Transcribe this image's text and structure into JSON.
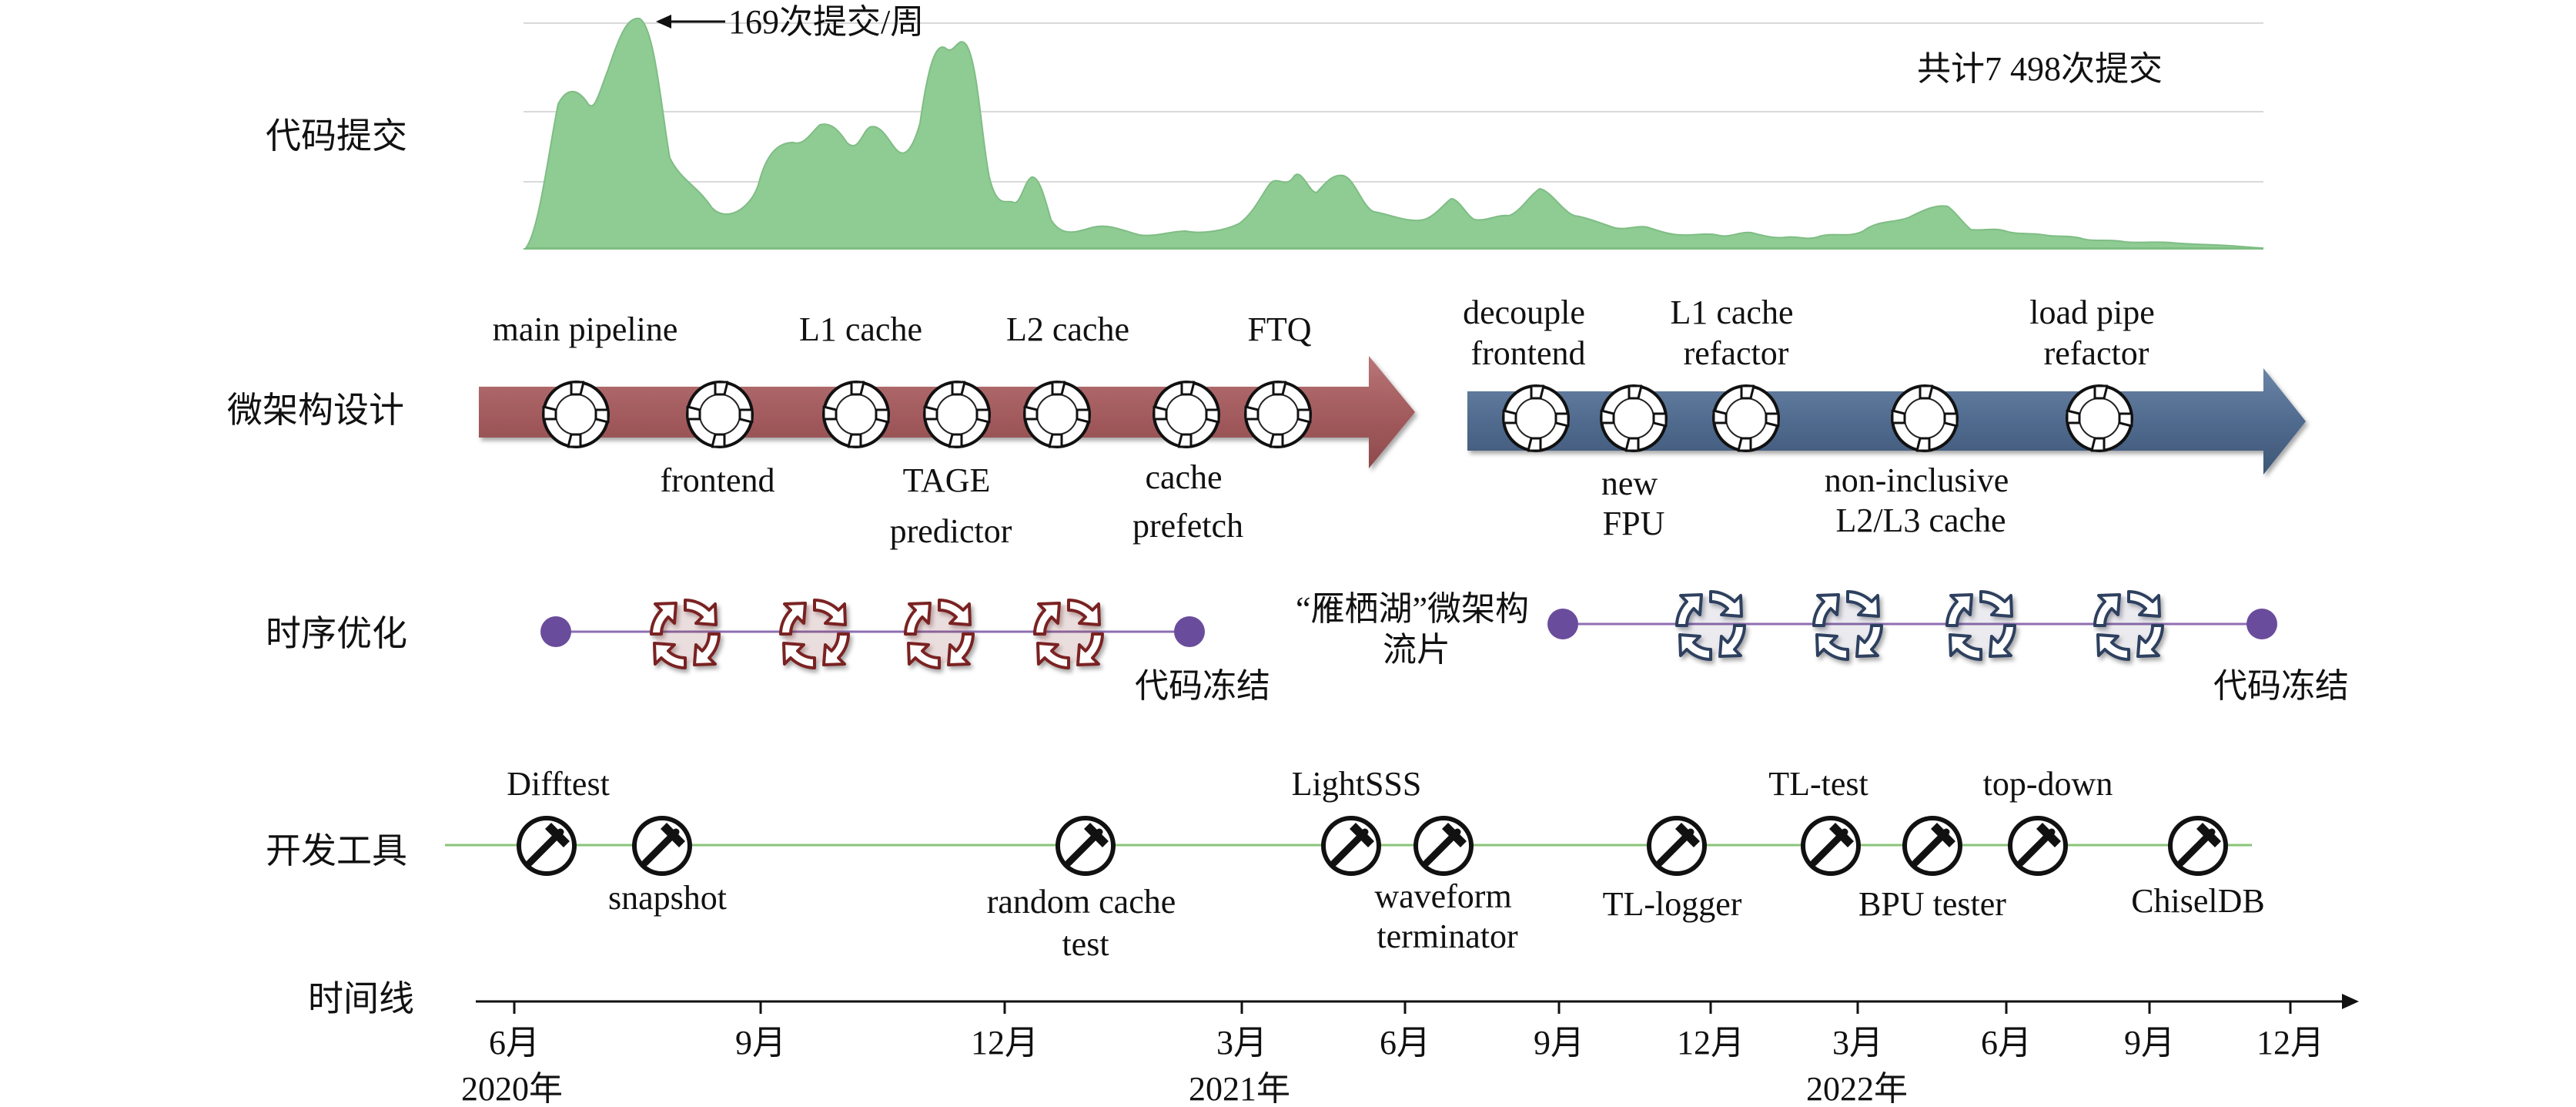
{
  "colors": {
    "commits_fill": "#8fcc94",
    "arrow_phase1": "#a45c5e",
    "arrow_phase2": "#4f6a8c",
    "timing_line": "#8e6fb0",
    "timing_dot": "#6a4c9c",
    "tools_line": "#8bc37a",
    "red_gear": "#8a2a2a",
    "blue_gear": "#34496b"
  },
  "rows": {
    "commits": "代码提交",
    "microarch": "微架构设计",
    "timing": "时序优化",
    "tools": "开发工具",
    "timeline": "时间线"
  },
  "commits": {
    "peak_label": "169次提交/周",
    "total_label": "共计7 498次提交"
  },
  "microarch": {
    "phase1_top": [
      {
        "lines": [
          "main pipeline"
        ]
      },
      {
        "lines": [
          "L1 cache"
        ]
      },
      {
        "lines": [
          "L2 cache"
        ]
      },
      {
        "lines": [
          "FTQ"
        ]
      }
    ],
    "phase1_bottom": [
      {
        "lines": [
          "frontend"
        ]
      },
      {
        "lines": [
          "TAGE",
          "predictor"
        ]
      },
      {
        "lines": [
          "cache",
          "prefetch"
        ]
      }
    ],
    "phase2_top": [
      {
        "lines": [
          "decouple",
          "frontend"
        ]
      },
      {
        "lines": [
          "L1 cache",
          "refactor"
        ]
      },
      {
        "lines": [
          "load pipe",
          "refactor"
        ]
      }
    ],
    "phase2_bottom": [
      {
        "lines": [
          "new",
          "FPU"
        ]
      },
      {
        "lines": [
          "non-inclusive",
          "L2/L3 cache"
        ]
      }
    ]
  },
  "timing": {
    "freeze1": "代码冻结",
    "tapeout": [
      "“雁栖湖”微架构",
      "流片"
    ],
    "freeze2": "代码冻结"
  },
  "tools": {
    "top": [
      {
        "lines": [
          "Difftest"
        ]
      },
      {
        "lines": [
          "LightSSS"
        ]
      },
      {
        "lines": [
          "TL-test"
        ]
      },
      {
        "lines": [
          "top-down"
        ]
      }
    ],
    "bottom": [
      {
        "lines": [
          "snapshot"
        ]
      },
      {
        "lines": [
          "random cache",
          "test"
        ]
      },
      {
        "lines": [
          "waveform",
          "terminator"
        ]
      },
      {
        "lines": [
          "TL-logger"
        ]
      },
      {
        "lines": [
          "BPU tester"
        ]
      },
      {
        "lines": [
          "ChiselDB"
        ]
      }
    ]
  },
  "timeline": {
    "months": [
      "6月",
      "9月",
      "12月",
      "3月",
      "6月",
      "9月",
      "12月",
      "3月",
      "6月",
      "9月",
      "12月"
    ],
    "years": [
      "2020年",
      "2021年",
      "2022年"
    ]
  }
}
